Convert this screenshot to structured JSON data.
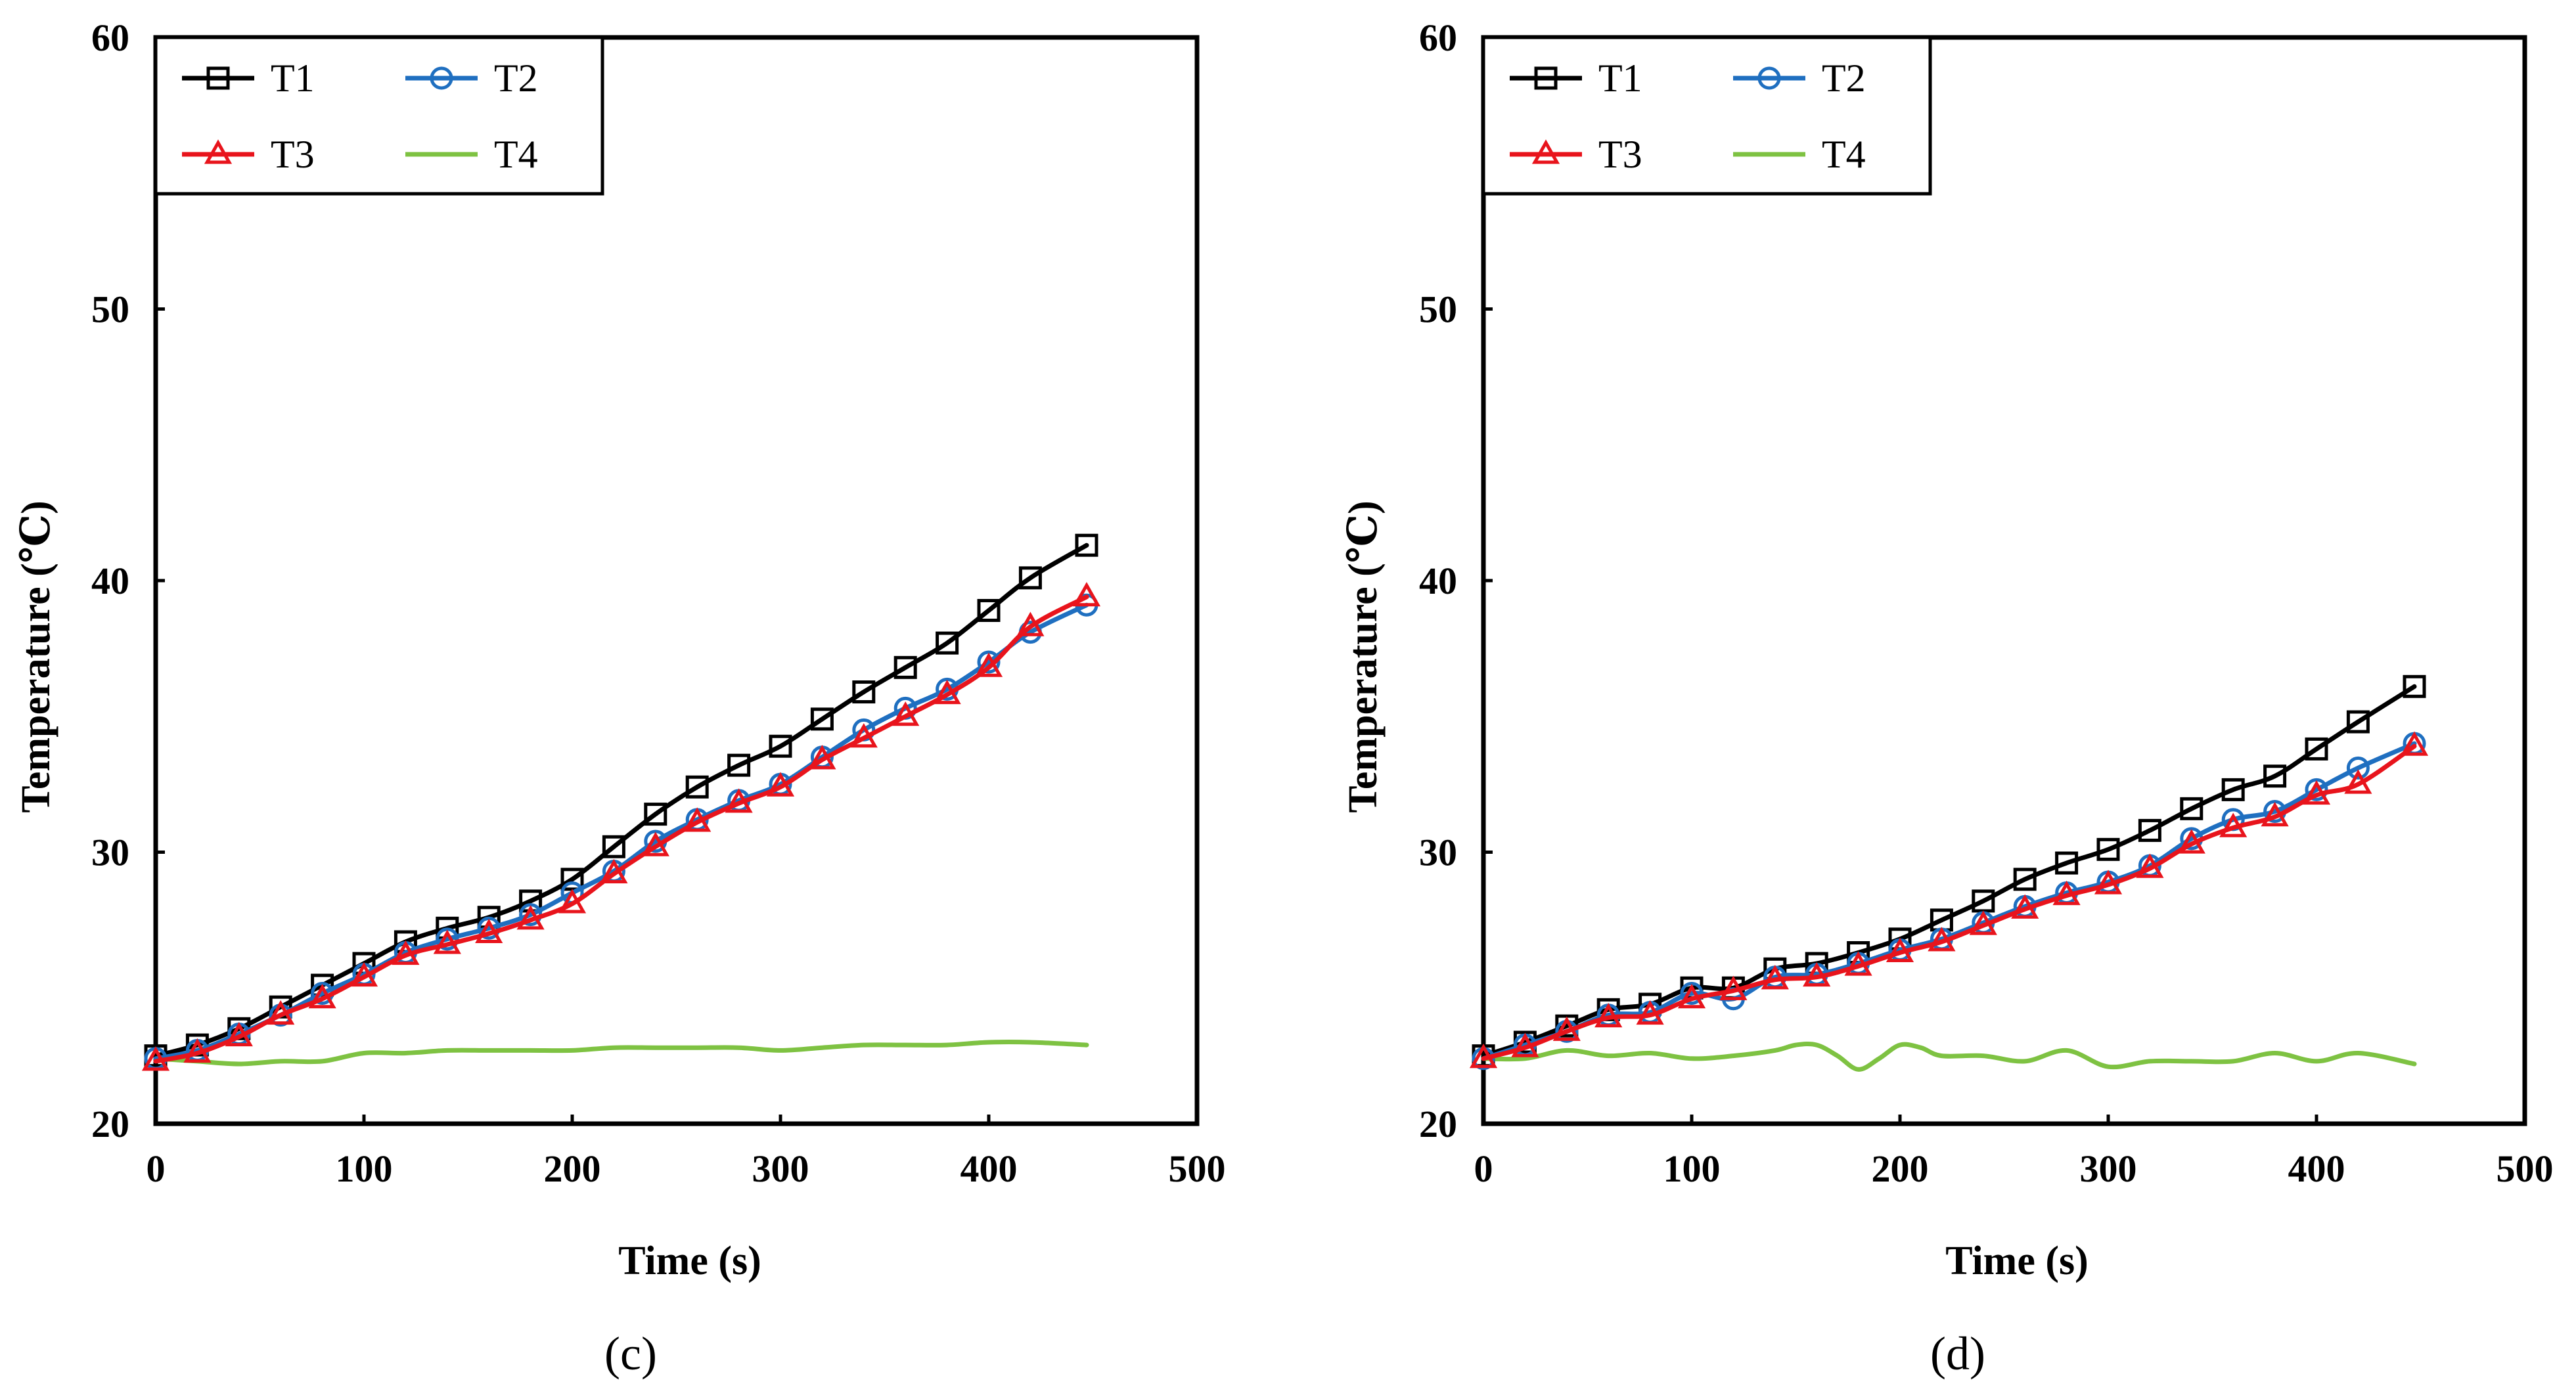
{
  "chart_data": [
    {
      "type": "line",
      "panel_label": "(c)",
      "xlabel": "Time (s)",
      "ylabel": "Temperature (℃)",
      "xlim": [
        0,
        500
      ],
      "ylim": [
        20,
        60
      ],
      "xticks": [
        "0",
        "100",
        "200",
        "300",
        "400",
        "500"
      ],
      "yticks": [
        "20",
        "30",
        "40",
        "50",
        "60"
      ],
      "legend_position": "top-left",
      "series": [
        {
          "name": "T1",
          "color": "#000000",
          "marker": "square",
          "x": [
            0,
            20,
            40,
            60,
            80,
            100,
            120,
            140,
            160,
            180,
            200,
            220,
            240,
            260,
            280,
            300,
            320,
            340,
            360,
            380,
            400,
            420,
            447
          ],
          "y": [
            22.5,
            22.9,
            23.5,
            24.3,
            25.1,
            25.9,
            26.7,
            27.2,
            27.6,
            28.2,
            29.0,
            30.2,
            31.4,
            32.4,
            33.2,
            33.9,
            34.9,
            35.9,
            36.8,
            37.7,
            38.9,
            40.1,
            41.3
          ]
        },
        {
          "name": "T2",
          "color": "#1f6fc0",
          "marker": "circle",
          "x": [
            0,
            20,
            40,
            60,
            80,
            100,
            120,
            140,
            160,
            180,
            200,
            220,
            240,
            260,
            280,
            300,
            320,
            340,
            360,
            380,
            400,
            420,
            447
          ],
          "y": [
            22.4,
            22.7,
            23.3,
            24.0,
            24.8,
            25.5,
            26.3,
            26.8,
            27.2,
            27.7,
            28.5,
            29.3,
            30.4,
            31.2,
            31.9,
            32.5,
            33.5,
            34.5,
            35.3,
            36.0,
            37.0,
            38.1,
            39.1
          ]
        },
        {
          "name": "T3",
          "color": "#e8141c",
          "marker": "triangle",
          "x": [
            0,
            20,
            40,
            60,
            80,
            100,
            120,
            140,
            160,
            180,
            200,
            220,
            240,
            260,
            280,
            300,
            320,
            340,
            360,
            380,
            400,
            420,
            447
          ],
          "y": [
            22.3,
            22.6,
            23.2,
            24.0,
            24.6,
            25.4,
            26.2,
            26.6,
            27.0,
            27.5,
            28.1,
            29.2,
            30.2,
            31.1,
            31.8,
            32.4,
            33.4,
            34.2,
            35.0,
            35.8,
            36.8,
            38.3,
            39.4
          ]
        },
        {
          "name": "T4",
          "color": "#7ec242",
          "marker": "none",
          "x": [
            0,
            20,
            40,
            60,
            80,
            100,
            120,
            140,
            160,
            180,
            200,
            220,
            240,
            260,
            280,
            300,
            320,
            340,
            360,
            380,
            400,
            420,
            447
          ],
          "y": [
            22.4,
            22.3,
            22.2,
            22.3,
            22.3,
            22.6,
            22.6,
            22.7,
            22.7,
            22.7,
            22.7,
            22.8,
            22.8,
            22.8,
            22.8,
            22.7,
            22.8,
            22.9,
            22.9,
            22.9,
            23.0,
            23.0,
            22.9
          ]
        }
      ]
    },
    {
      "type": "line",
      "panel_label": "(d)",
      "xlabel": "Time (s)",
      "ylabel": "Temperature (℃)",
      "xlim": [
        0,
        500
      ],
      "ylim": [
        20,
        60
      ],
      "xticks": [
        "0",
        "100",
        "200",
        "300",
        "400",
        "500"
      ],
      "yticks": [
        "20",
        "30",
        "40",
        "50",
        "60"
      ],
      "legend_position": "top-left",
      "series": [
        {
          "name": "T1",
          "color": "#000000",
          "marker": "square",
          "x": [
            0,
            20,
            40,
            60,
            80,
            100,
            120,
            140,
            160,
            180,
            200,
            220,
            240,
            260,
            280,
            300,
            320,
            340,
            360,
            380,
            400,
            420,
            447
          ],
          "y": [
            22.5,
            23.0,
            23.6,
            24.2,
            24.4,
            25.0,
            25.0,
            25.7,
            25.9,
            26.3,
            26.8,
            27.5,
            28.2,
            29.0,
            29.6,
            30.1,
            30.8,
            31.6,
            32.3,
            32.8,
            33.8,
            34.8,
            36.1
          ]
        },
        {
          "name": "T2",
          "color": "#1f6fc0",
          "marker": "circle",
          "x": [
            0,
            20,
            40,
            60,
            80,
            100,
            120,
            140,
            160,
            180,
            200,
            220,
            240,
            260,
            280,
            300,
            320,
            340,
            360,
            380,
            400,
            420,
            447
          ],
          "y": [
            22.4,
            22.9,
            23.4,
            24.0,
            24.1,
            24.8,
            24.6,
            25.4,
            25.5,
            25.9,
            26.4,
            26.8,
            27.4,
            28.0,
            28.5,
            28.9,
            29.5,
            30.5,
            31.2,
            31.5,
            32.3,
            33.1,
            34.0
          ]
        },
        {
          "name": "T3",
          "color": "#e8141c",
          "marker": "triangle",
          "x": [
            0,
            20,
            40,
            60,
            80,
            100,
            120,
            140,
            160,
            180,
            200,
            220,
            240,
            260,
            280,
            300,
            320,
            340,
            360,
            380,
            400,
            420,
            447
          ],
          "y": [
            22.4,
            22.8,
            23.4,
            23.9,
            24.0,
            24.6,
            24.9,
            25.3,
            25.4,
            25.8,
            26.3,
            26.7,
            27.3,
            27.9,
            28.4,
            28.8,
            29.4,
            30.3,
            30.9,
            31.3,
            32.1,
            32.5,
            33.9
          ]
        },
        {
          "name": "T4",
          "color": "#7ec242",
          "marker": "none",
          "x": [
            0,
            20,
            40,
            60,
            80,
            100,
            120,
            140,
            150,
            160,
            170,
            180,
            190,
            200,
            210,
            220,
            240,
            260,
            280,
            300,
            320,
            340,
            360,
            380,
            400,
            420,
            447
          ],
          "y": [
            22.4,
            22.4,
            22.7,
            22.5,
            22.6,
            22.4,
            22.5,
            22.7,
            22.9,
            22.9,
            22.5,
            22.0,
            22.4,
            22.9,
            22.8,
            22.5,
            22.5,
            22.3,
            22.7,
            22.1,
            22.3,
            22.3,
            22.3,
            22.6,
            22.3,
            22.6,
            22.2
          ]
        }
      ]
    }
  ]
}
